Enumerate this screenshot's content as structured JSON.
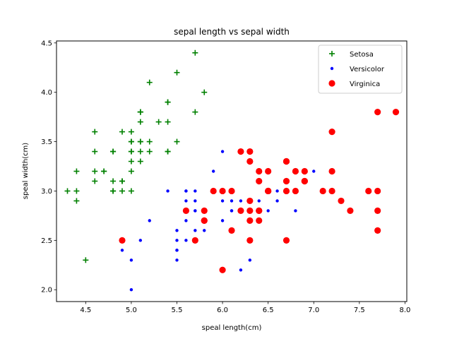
{
  "chart_data": {
    "type": "scatter",
    "title": "sepal length vs sepal width",
    "xlabel": "speal length(cm)",
    "ylabel": "speal width(cm)",
    "xlim": [
      4.18,
      8.02
    ],
    "ylim": [
      1.88,
      4.52
    ],
    "xticks": [
      "4.5",
      "5.0",
      "5.5",
      "6.0",
      "6.5",
      "7.0",
      "7.5",
      "8.0"
    ],
    "yticks": [
      "2.0",
      "2.5",
      "3.0",
      "3.5",
      "4.0",
      "4.5"
    ],
    "grid": false,
    "legend_position": "top-right",
    "series": [
      {
        "name": "Setosa",
        "marker": "plus",
        "color": "#008000",
        "points": [
          [
            5.1,
            3.5
          ],
          [
            4.9,
            3.0
          ],
          [
            4.7,
            3.2
          ],
          [
            4.6,
            3.1
          ],
          [
            5.0,
            3.6
          ],
          [
            5.4,
            3.9
          ],
          [
            4.6,
            3.4
          ],
          [
            5.0,
            3.4
          ],
          [
            4.4,
            2.9
          ],
          [
            4.9,
            3.1
          ],
          [
            5.4,
            3.7
          ],
          [
            4.8,
            3.4
          ],
          [
            4.8,
            3.0
          ],
          [
            4.3,
            3.0
          ],
          [
            5.8,
            4.0
          ],
          [
            5.7,
            4.4
          ],
          [
            5.4,
            3.9
          ],
          [
            5.1,
            3.5
          ],
          [
            5.7,
            3.8
          ],
          [
            5.1,
            3.8
          ],
          [
            5.4,
            3.4
          ],
          [
            5.1,
            3.7
          ],
          [
            4.6,
            3.6
          ],
          [
            5.1,
            3.3
          ],
          [
            4.8,
            3.4
          ],
          [
            5.0,
            3.0
          ],
          [
            5.0,
            3.4
          ],
          [
            5.2,
            3.5
          ],
          [
            5.2,
            3.4
          ],
          [
            4.7,
            3.2
          ],
          [
            4.8,
            3.1
          ],
          [
            5.4,
            3.4
          ],
          [
            5.2,
            4.1
          ],
          [
            5.5,
            4.2
          ],
          [
            4.9,
            3.1
          ],
          [
            5.0,
            3.2
          ],
          [
            5.5,
            3.5
          ],
          [
            4.9,
            3.6
          ],
          [
            4.4,
            3.0
          ],
          [
            5.1,
            3.4
          ],
          [
            5.0,
            3.5
          ],
          [
            4.5,
            2.3
          ],
          [
            4.4,
            3.2
          ],
          [
            5.0,
            3.5
          ],
          [
            5.1,
            3.8
          ],
          [
            4.8,
            3.0
          ],
          [
            5.1,
            3.8
          ],
          [
            4.6,
            3.2
          ],
          [
            5.3,
            3.7
          ],
          [
            5.0,
            3.3
          ]
        ]
      },
      {
        "name": "Versicolor",
        "marker": "dot",
        "color": "#0000ff",
        "points": [
          [
            7.0,
            3.2
          ],
          [
            6.4,
            3.2
          ],
          [
            6.9,
            3.1
          ],
          [
            5.5,
            2.3
          ],
          [
            6.5,
            2.8
          ],
          [
            5.7,
            2.8
          ],
          [
            6.3,
            3.3
          ],
          [
            4.9,
            2.4
          ],
          [
            6.6,
            2.9
          ],
          [
            5.2,
            2.7
          ],
          [
            5.0,
            2.0
          ],
          [
            5.9,
            3.0
          ],
          [
            6.0,
            2.2
          ],
          [
            6.1,
            2.9
          ],
          [
            5.6,
            2.9
          ],
          [
            6.7,
            3.1
          ],
          [
            5.6,
            3.0
          ],
          [
            5.8,
            2.7
          ],
          [
            6.2,
            2.2
          ],
          [
            5.6,
            2.5
          ],
          [
            5.9,
            3.2
          ],
          [
            6.1,
            2.8
          ],
          [
            6.3,
            2.5
          ],
          [
            6.1,
            2.8
          ],
          [
            6.4,
            2.9
          ],
          [
            6.6,
            3.0
          ],
          [
            6.8,
            2.8
          ],
          [
            6.7,
            3.0
          ],
          [
            6.0,
            2.9
          ],
          [
            5.7,
            2.6
          ],
          [
            5.5,
            2.4
          ],
          [
            5.5,
            2.4
          ],
          [
            5.8,
            2.7
          ],
          [
            6.0,
            2.7
          ],
          [
            5.4,
            3.0
          ],
          [
            6.0,
            3.4
          ],
          [
            6.7,
            3.1
          ],
          [
            6.3,
            2.3
          ],
          [
            5.6,
            3.0
          ],
          [
            5.5,
            2.5
          ],
          [
            5.5,
            2.6
          ],
          [
            6.1,
            3.0
          ],
          [
            5.8,
            2.6
          ],
          [
            5.0,
            2.3
          ],
          [
            5.6,
            2.7
          ],
          [
            5.7,
            3.0
          ],
          [
            5.7,
            2.9
          ],
          [
            6.2,
            2.9
          ],
          [
            5.1,
            2.5
          ],
          [
            5.7,
            2.8
          ]
        ]
      },
      {
        "name": "Virginica",
        "marker": "circle",
        "color": "#ff0000",
        "points": [
          [
            6.3,
            3.3
          ],
          [
            5.8,
            2.7
          ],
          [
            7.1,
            3.0
          ],
          [
            6.3,
            2.9
          ],
          [
            6.5,
            3.0
          ],
          [
            7.6,
            3.0
          ],
          [
            4.9,
            2.5
          ],
          [
            7.3,
            2.9
          ],
          [
            6.7,
            2.5
          ],
          [
            7.2,
            3.6
          ],
          [
            6.5,
            3.2
          ],
          [
            6.4,
            2.7
          ],
          [
            6.8,
            3.0
          ],
          [
            5.7,
            2.5
          ],
          [
            5.8,
            2.8
          ],
          [
            6.4,
            3.2
          ],
          [
            6.5,
            3.0
          ],
          [
            7.7,
            3.8
          ],
          [
            7.7,
            2.6
          ],
          [
            6.0,
            2.2
          ],
          [
            6.9,
            3.2
          ],
          [
            5.6,
            2.8
          ],
          [
            7.7,
            2.8
          ],
          [
            6.3,
            2.7
          ],
          [
            6.7,
            3.3
          ],
          [
            7.2,
            3.2
          ],
          [
            6.2,
            2.8
          ],
          [
            6.1,
            3.0
          ],
          [
            6.4,
            2.8
          ],
          [
            7.2,
            3.0
          ],
          [
            7.4,
            2.8
          ],
          [
            7.9,
            3.8
          ],
          [
            6.4,
            2.8
          ],
          [
            6.3,
            2.8
          ],
          [
            6.1,
            2.6
          ],
          [
            7.7,
            3.0
          ],
          [
            6.3,
            3.4
          ],
          [
            6.4,
            3.1
          ],
          [
            6.0,
            3.0
          ],
          [
            6.9,
            3.1
          ],
          [
            6.7,
            3.1
          ],
          [
            6.9,
            3.1
          ],
          [
            5.8,
            2.7
          ],
          [
            6.8,
            3.2
          ],
          [
            6.7,
            3.3
          ],
          [
            6.7,
            3.0
          ],
          [
            6.3,
            2.5
          ],
          [
            6.5,
            3.0
          ],
          [
            6.2,
            3.4
          ],
          [
            5.9,
            3.0
          ]
        ]
      }
    ]
  }
}
